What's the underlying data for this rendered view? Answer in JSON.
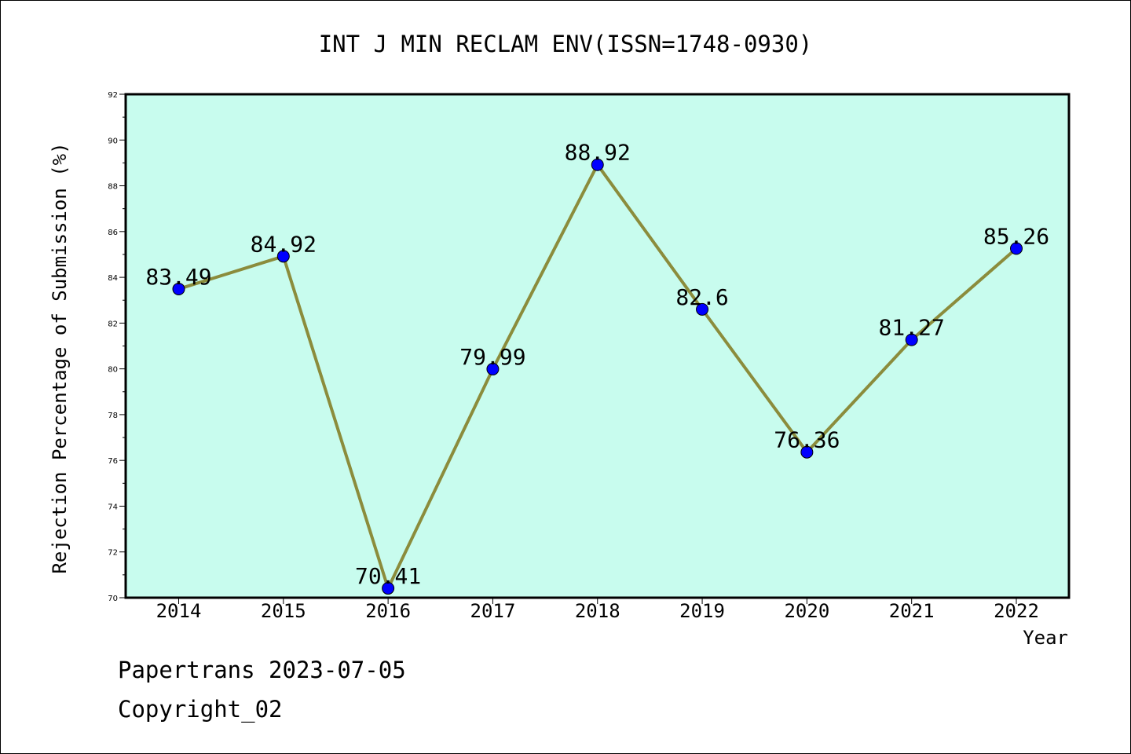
{
  "chart_data": {
    "type": "line",
    "title": "INT J MIN RECLAM ENV(ISSN=1748-0930)",
    "xlabel": "Year",
    "ylabel": "Rejection Percentage of Submission (%)",
    "categories": [
      "2014",
      "2015",
      "2016",
      "2017",
      "2018",
      "2019",
      "2020",
      "2021",
      "2022"
    ],
    "values": [
      83.49,
      84.92,
      70.41,
      79.99,
      88.92,
      82.6,
      76.36,
      81.27,
      85.26
    ],
    "data_labels": [
      "83.49",
      "84.92",
      "70.41",
      "79.99",
      "88.92",
      "82.6",
      "76.36",
      "81.27",
      "85.26"
    ],
    "ylim": [
      70,
      92
    ],
    "yticks": [
      70,
      72,
      74,
      76,
      78,
      80,
      82,
      84,
      86,
      88,
      90,
      92
    ],
    "grid": false,
    "legend": "none",
    "colors": {
      "plot_background": "#c8fcee",
      "line": "#8b8c3c",
      "marker": "#0000ff",
      "axes": "#000000"
    }
  },
  "footer": {
    "line1": "Papertrans 2023-07-05",
    "line2": "Copyright_02"
  }
}
